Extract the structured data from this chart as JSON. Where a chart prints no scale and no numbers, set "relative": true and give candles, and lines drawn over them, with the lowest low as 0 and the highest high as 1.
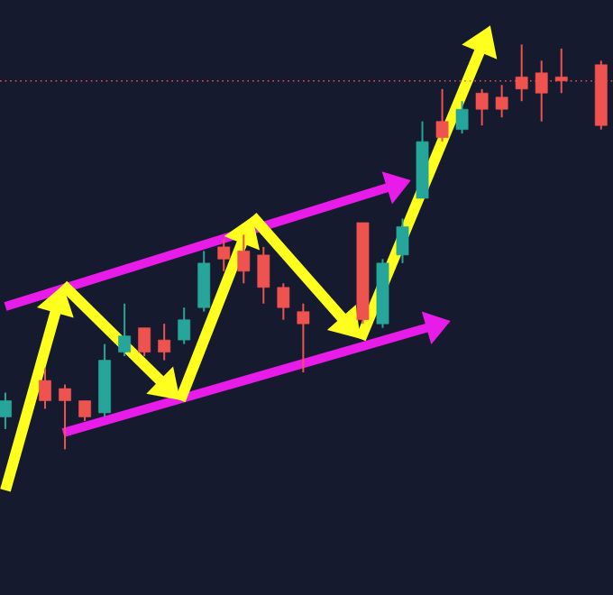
{
  "chart_data": {
    "type": "candlestick",
    "relative": true,
    "categories": [
      null,
      null,
      null,
      null,
      null,
      null,
      null,
      null,
      null,
      null,
      null,
      null,
      null,
      null,
      null,
      null,
      null,
      null,
      null,
      null,
      null,
      null,
      null,
      null,
      null,
      null,
      null,
      null,
      null,
      null,
      null
    ],
    "ohlc": [
      [
        0.08,
        0.14,
        0.05,
        0.12
      ],
      null,
      [
        0.17,
        0.2,
        0.1,
        0.12
      ],
      [
        0.15,
        0.16,
        0,
        0.12
      ],
      [
        0.12,
        0.12,
        0.07,
        0.08
      ],
      [
        0.09,
        0.26,
        0.08,
        0.22
      ],
      [
        0.24,
        0.36,
        0.23,
        0.28
      ],
      [
        0.3,
        0.3,
        0.23,
        0.24
      ],
      [
        0.27,
        0.31,
        0.22,
        0.24
      ],
      [
        0.27,
        0.35,
        0.26,
        0.32
      ],
      [
        0.35,
        0.49,
        0.34,
        0.46
      ],
      [
        0.5,
        0.52,
        0.44,
        0.47
      ],
      [
        0.49,
        0.53,
        0.41,
        0.44
      ],
      [
        0.48,
        0.5,
        0.36,
        0.4
      ],
      [
        0.4,
        0.41,
        0.32,
        0.35
      ],
      [
        0.34,
        0.36,
        0.19,
        0.31
      ],
      null,
      null,
      [
        0.56,
        0.56,
        0.31,
        0.32
      ],
      [
        0.31,
        0.47,
        0.3,
        0.46
      ],
      [
        0.48,
        0.57,
        0.46,
        0.55
      ],
      [
        0.62,
        0.81,
        0.62,
        0.76
      ],
      [
        0.81,
        0.89,
        0.76,
        0.77
      ],
      [
        0.79,
        0.86,
        0.78,
        0.84
      ],
      [
        0.88,
        0.89,
        0.8,
        0.84
      ],
      [
        0.87,
        0.9,
        0.82,
        0.84
      ],
      [
        0.92,
        1,
        0.86,
        0.89
      ],
      [
        0.93,
        0.96,
        0.81,
        0.88
      ],
      [
        0.92,
        0.99,
        0.88,
        0.91
      ],
      null,
      [
        0.95,
        0.96,
        0.79,
        0.8
      ]
    ],
    "colors": [
      "#26a69a",
      null,
      "#ef5350",
      "#ef5350",
      "#ef5350",
      "#26a69a",
      "#26a69a",
      "#ef5350",
      "#ef5350",
      "#26a69a",
      "#26a69a",
      "#ef5350",
      "#ef5350",
      "#ef5350",
      "#ef5350",
      "#ef5350",
      null,
      null,
      "#ef5350",
      "#26a69a",
      "#26a69a",
      "#26a69a",
      "#ef5350",
      "#26a69a",
      "#ef5350",
      "#ef5350",
      "#ef5350",
      "#ef5350",
      "#ef5350",
      null,
      "#ef5350"
    ],
    "ref_lines": [
      {
        "axis": "y",
        "value": 0.91,
        "color": "#ef5350",
        "line_style": "dotted"
      }
    ]
  }
}
